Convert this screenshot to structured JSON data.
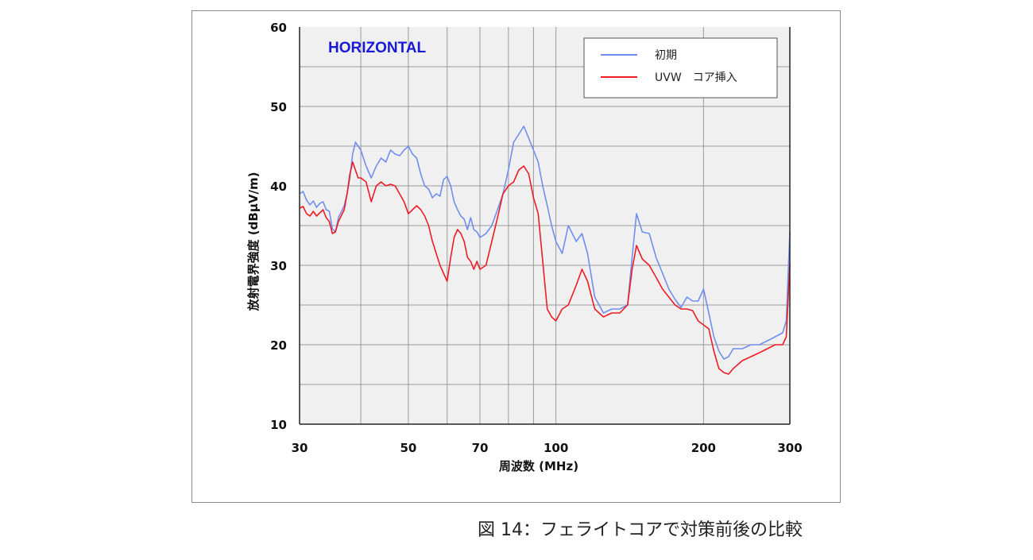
{
  "caption": "図 14：フェライトコアで対策前後の比較",
  "colors": {
    "series_initial": "#6f8ff0",
    "series_core": "#ee1c25",
    "plot_bg": "#f0f0f0",
    "grid": "#9a9a9a",
    "annotation": "#1a1ad6"
  },
  "chart_data": {
    "type": "line",
    "annotation": "HORIZONTAL",
    "xlabel": "周波数 (MHz)",
    "ylabel": "放射電界強度 (dBμV/m)",
    "x_scale": "log",
    "xlim": [
      30,
      300
    ],
    "ylim": [
      10,
      60
    ],
    "x_ticks": [
      30,
      50,
      70,
      100,
      200,
      300
    ],
    "x_tick_labels": [
      "30",
      "50",
      "70",
      "100",
      "200",
      "300"
    ],
    "x_minor_grid": [
      40,
      60,
      80,
      90
    ],
    "y_ticks": [
      10,
      20,
      30,
      40,
      50,
      60
    ],
    "y_tick_labels": [
      "10",
      "20",
      "30",
      "40",
      "50",
      "60"
    ],
    "y_minor_grid": [
      15,
      25,
      35,
      45,
      55
    ],
    "grid": true,
    "legend_position": "top-right",
    "series": [
      {
        "name": "初期",
        "x": [
          30,
          30.5,
          31,
          31.5,
          32,
          32.5,
          33,
          33.5,
          34,
          34.5,
          35,
          35.5,
          36,
          37,
          37.5,
          38,
          38.5,
          39,
          39.5,
          40,
          41,
          42,
          43,
          44,
          45,
          46,
          47,
          48,
          49,
          50,
          51,
          52,
          53,
          54,
          55,
          56,
          57,
          58,
          59,
          60,
          61,
          62,
          63,
          64,
          65,
          66,
          67,
          68,
          69,
          70,
          72,
          74,
          76,
          78,
          80,
          82,
          84,
          86,
          88,
          90,
          92,
          94,
          96,
          98,
          100,
          103,
          106,
          110,
          113,
          116,
          120,
          125,
          130,
          135,
          140,
          143,
          146,
          150,
          155,
          160,
          165,
          170,
          175,
          180,
          185,
          190,
          195,
          200,
          205,
          210,
          215,
          220,
          225,
          230,
          240,
          250,
          260,
          270,
          280,
          290,
          295,
          300
        ],
        "y": [
          39,
          39.3,
          38.2,
          37.6,
          38.1,
          37.3,
          37.8,
          38,
          37,
          36.8,
          34.6,
          34.2,
          36,
          37.5,
          39,
          41,
          44,
          45.5,
          45,
          44.5,
          42.5,
          41,
          42.5,
          43.5,
          43,
          44.5,
          44,
          43.8,
          44.5,
          45,
          44,
          43.5,
          41.5,
          40,
          39.6,
          38.5,
          39,
          38.7,
          40.8,
          41.2,
          40,
          38,
          37,
          36.2,
          35.8,
          34.5,
          36,
          34.5,
          34.2,
          33.5,
          34,
          35,
          37,
          39,
          42,
          45.5,
          46.5,
          47.5,
          46,
          44.5,
          43,
          40,
          37.5,
          35,
          33,
          31.5,
          35,
          33,
          34,
          31.5,
          26,
          24,
          24.5,
          24.5,
          25,
          31,
          36.5,
          34.2,
          34,
          31,
          29,
          27,
          25.7,
          24.7,
          26,
          25.5,
          25.5,
          27,
          24,
          21,
          19.2,
          18.2,
          18.5,
          19.5,
          19.5,
          20,
          20,
          20.5,
          21,
          21.5,
          23,
          34.2
        ]
      },
      {
        "name": "UVW　コア挿入",
        "x": [
          30,
          30.5,
          31,
          31.5,
          32,
          32.5,
          33,
          33.5,
          34,
          34.5,
          35,
          35.5,
          36,
          37,
          37.5,
          38,
          38.5,
          39,
          39.5,
          40,
          41,
          42,
          43,
          44,
          45,
          46,
          47,
          48,
          49,
          50,
          51,
          52,
          53,
          54,
          55,
          56,
          57,
          58,
          59,
          60,
          61,
          62,
          63,
          64,
          65,
          66,
          67,
          68,
          69,
          70,
          72,
          74,
          76,
          78,
          80,
          82,
          84,
          86,
          88,
          90,
          92,
          94,
          96,
          98,
          100,
          103,
          106,
          110,
          113,
          116,
          120,
          125,
          130,
          135,
          140,
          143,
          146,
          150,
          155,
          160,
          165,
          170,
          175,
          180,
          185,
          190,
          195,
          200,
          205,
          210,
          215,
          220,
          225,
          230,
          240,
          250,
          260,
          270,
          280,
          290,
          295,
          300
        ],
        "y": [
          37.2,
          37.4,
          36.5,
          36.2,
          36.8,
          36.2,
          36.6,
          37,
          36,
          35.5,
          34,
          34.2,
          35.5,
          37,
          39,
          41.5,
          43,
          42,
          41,
          41,
          40.5,
          38,
          40,
          40.5,
          40,
          40.2,
          40,
          39,
          38,
          36.5,
          37,
          37.5,
          37,
          36.2,
          35,
          33,
          31.5,
          30,
          29,
          28,
          31,
          33.5,
          34.5,
          34,
          33,
          31,
          30.5,
          29.5,
          30.5,
          29.5,
          30,
          33,
          36,
          39,
          40,
          40.5,
          42,
          42.5,
          41.5,
          38.5,
          36.5,
          30.5,
          24.5,
          23.5,
          23,
          24.5,
          25,
          27.5,
          29.5,
          28,
          24.5,
          23.5,
          24,
          24,
          25,
          29.5,
          32.5,
          30.8,
          30,
          28.5,
          27,
          26,
          25,
          24.5,
          24.5,
          24.3,
          23,
          22.5,
          22,
          19.2,
          17,
          16.5,
          16.3,
          17,
          18,
          18.5,
          19,
          19.5,
          20,
          20,
          21,
          30.2
        ]
      }
    ]
  }
}
